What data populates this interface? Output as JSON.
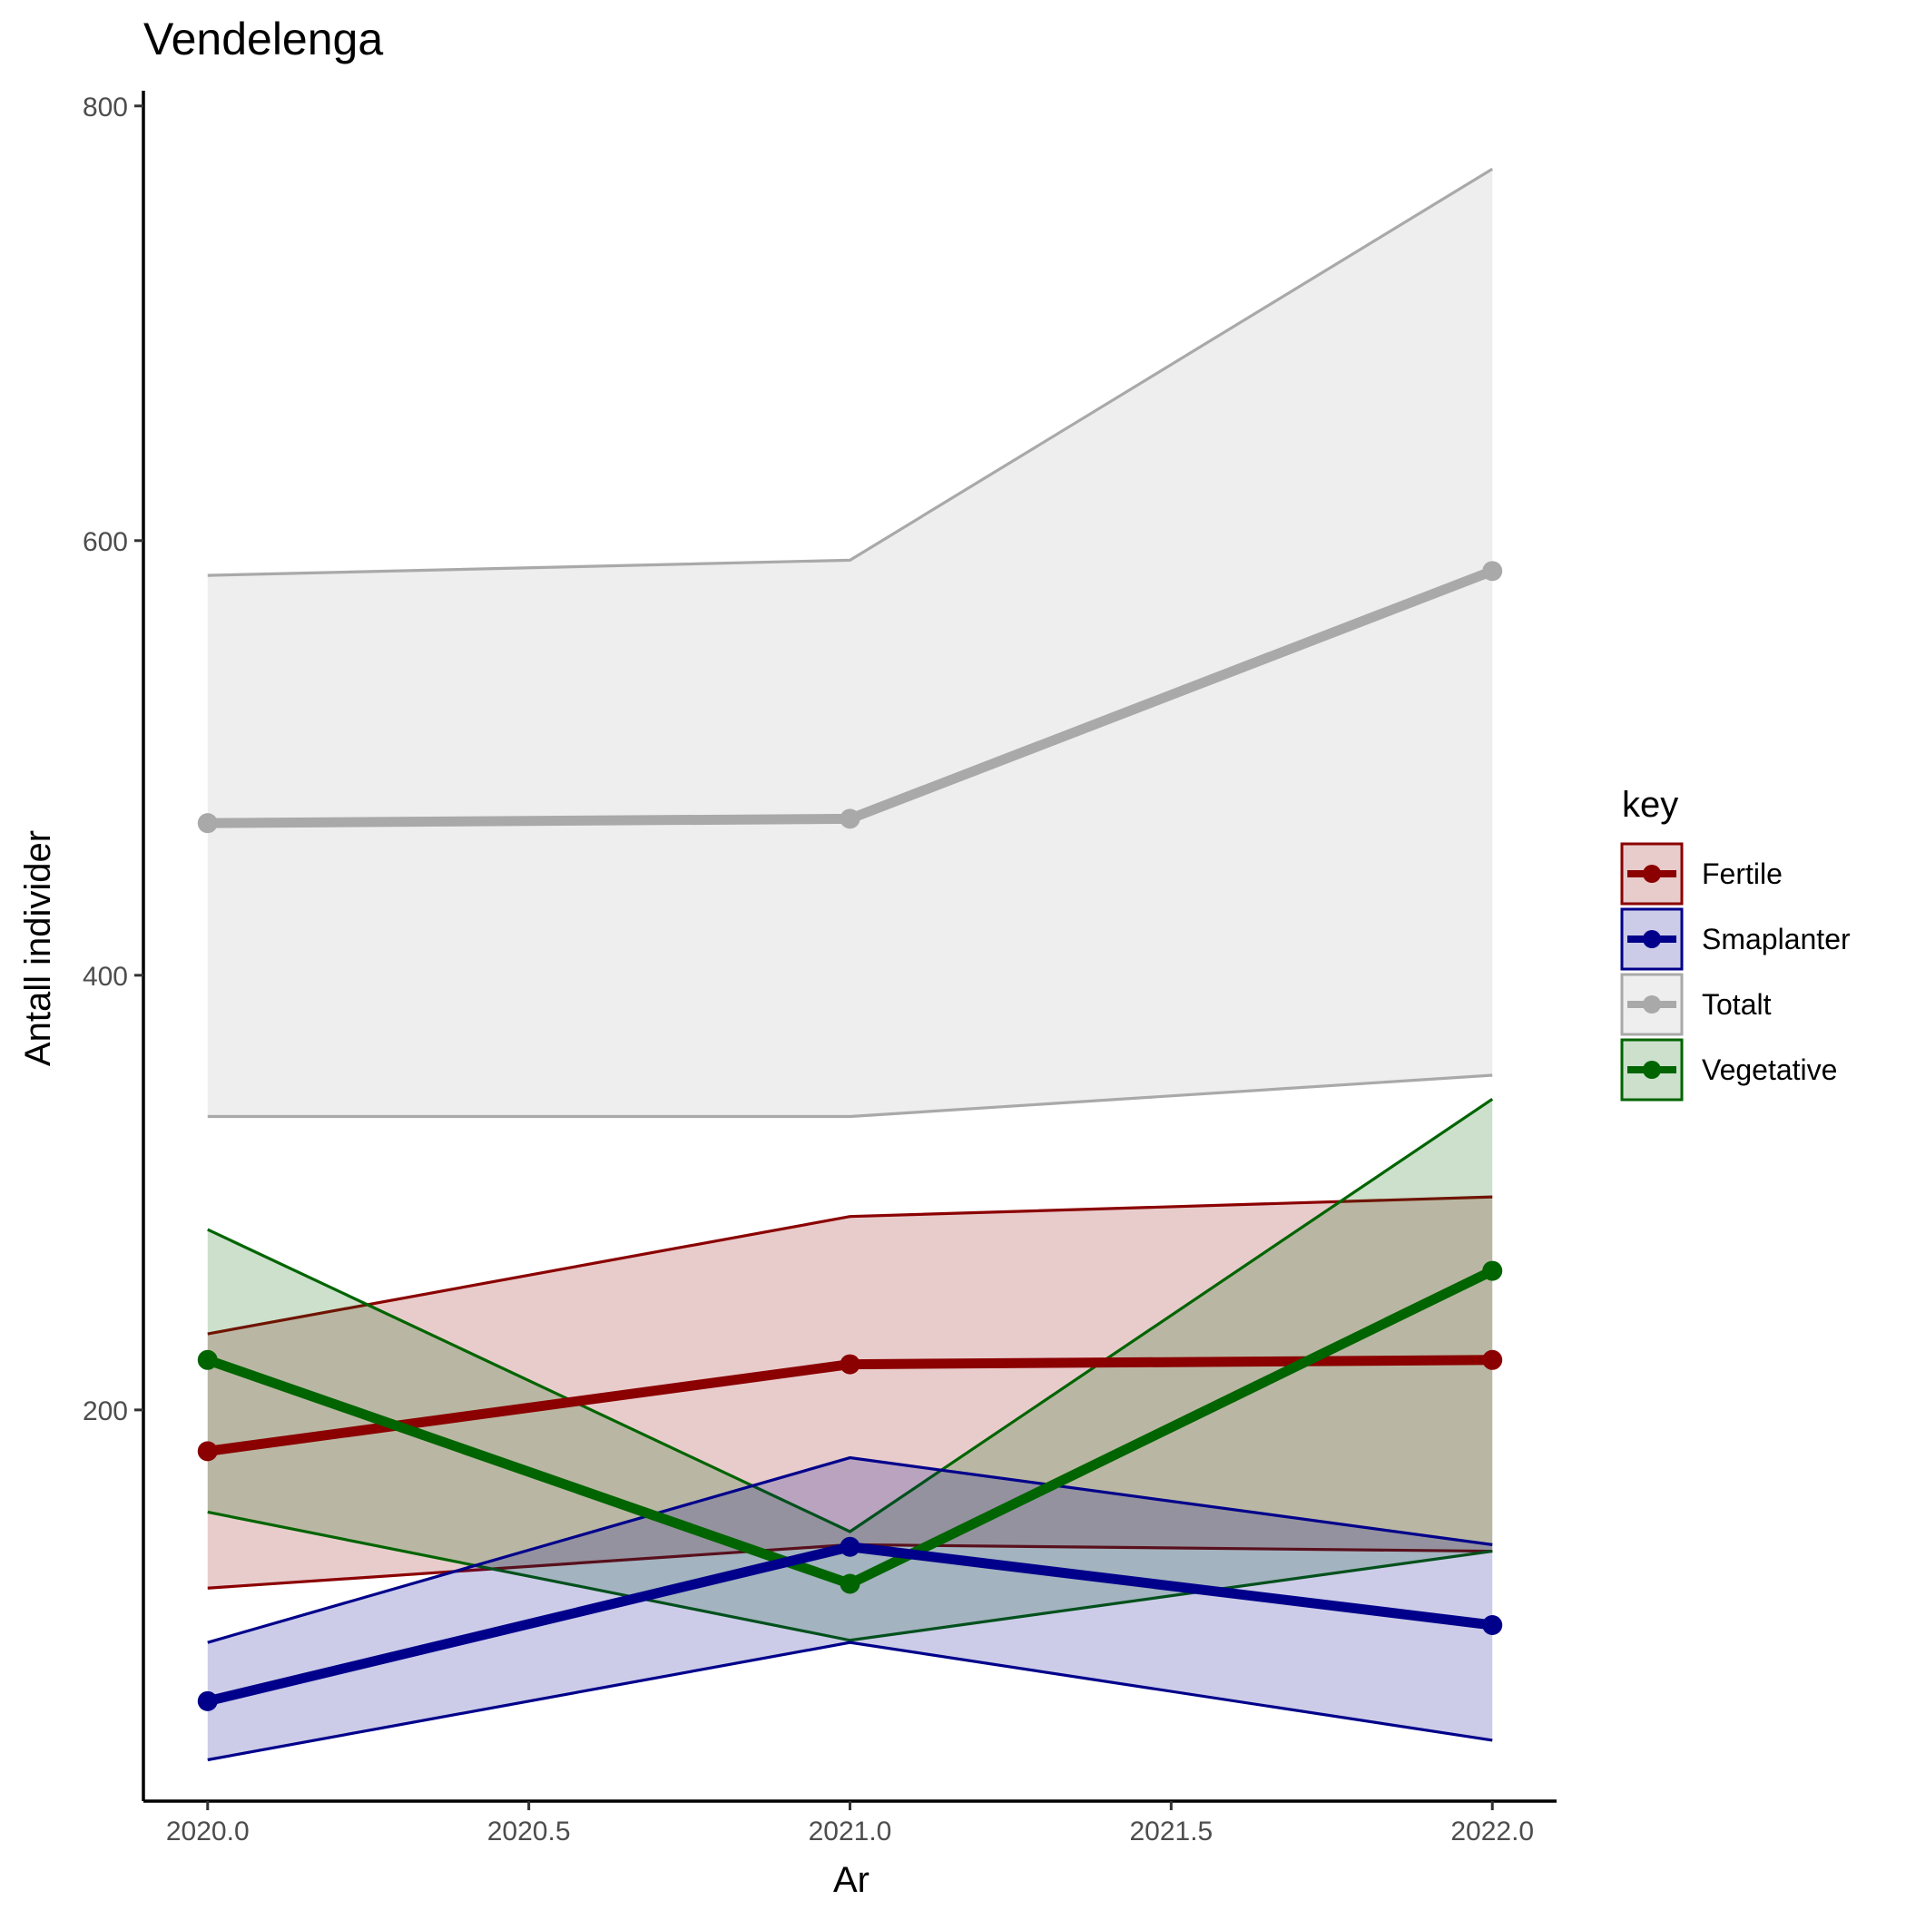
{
  "chart_data": {
    "type": "line",
    "title": "Vendelenga",
    "xlabel": "Ar",
    "ylabel": "Antall individer",
    "x": [
      2020,
      2021,
      2022
    ],
    "xlim": [
      2019.9,
      2022.1
    ],
    "ylim": [
      20,
      807
    ],
    "x_ticks": [
      2020.0,
      2020.5,
      2021.0,
      2021.5,
      2022.0
    ],
    "x_tick_labels": [
      "2020.0",
      "2020.5",
      "2021.0",
      "2021.5",
      "2022.0"
    ],
    "y_ticks": [
      200,
      400,
      600,
      800
    ],
    "y_tick_labels": [
      "200",
      "400",
      "600",
      "800"
    ],
    "grid": false,
    "legend": {
      "title": "key",
      "position": "right"
    },
    "series": [
      {
        "name": "Totalt",
        "color": "#A9A9A9",
        "values": [
          470,
          472,
          586
        ],
        "lower": [
          335,
          335,
          354
        ],
        "upper": [
          584,
          591,
          771
        ]
      },
      {
        "name": "Fertile",
        "color": "#8B0000",
        "values": [
          181,
          221,
          223
        ],
        "lower": [
          118,
          138,
          135
        ],
        "upper": [
          235,
          289,
          298
        ]
      },
      {
        "name": "Vegetative",
        "color": "#006400",
        "values": [
          223,
          120,
          264
        ],
        "lower": [
          153,
          94,
          135
        ],
        "upper": [
          283,
          144,
          343
        ]
      },
      {
        "name": "Smaplanter",
        "color": "#00008B",
        "values": [
          66,
          137,
          101
        ],
        "lower": [
          39,
          93,
          48
        ],
        "upper": [
          93,
          178,
          138
        ]
      }
    ],
    "legend_order": [
      "Fertile",
      "Smaplanter",
      "Totalt",
      "Vegetative"
    ]
  }
}
